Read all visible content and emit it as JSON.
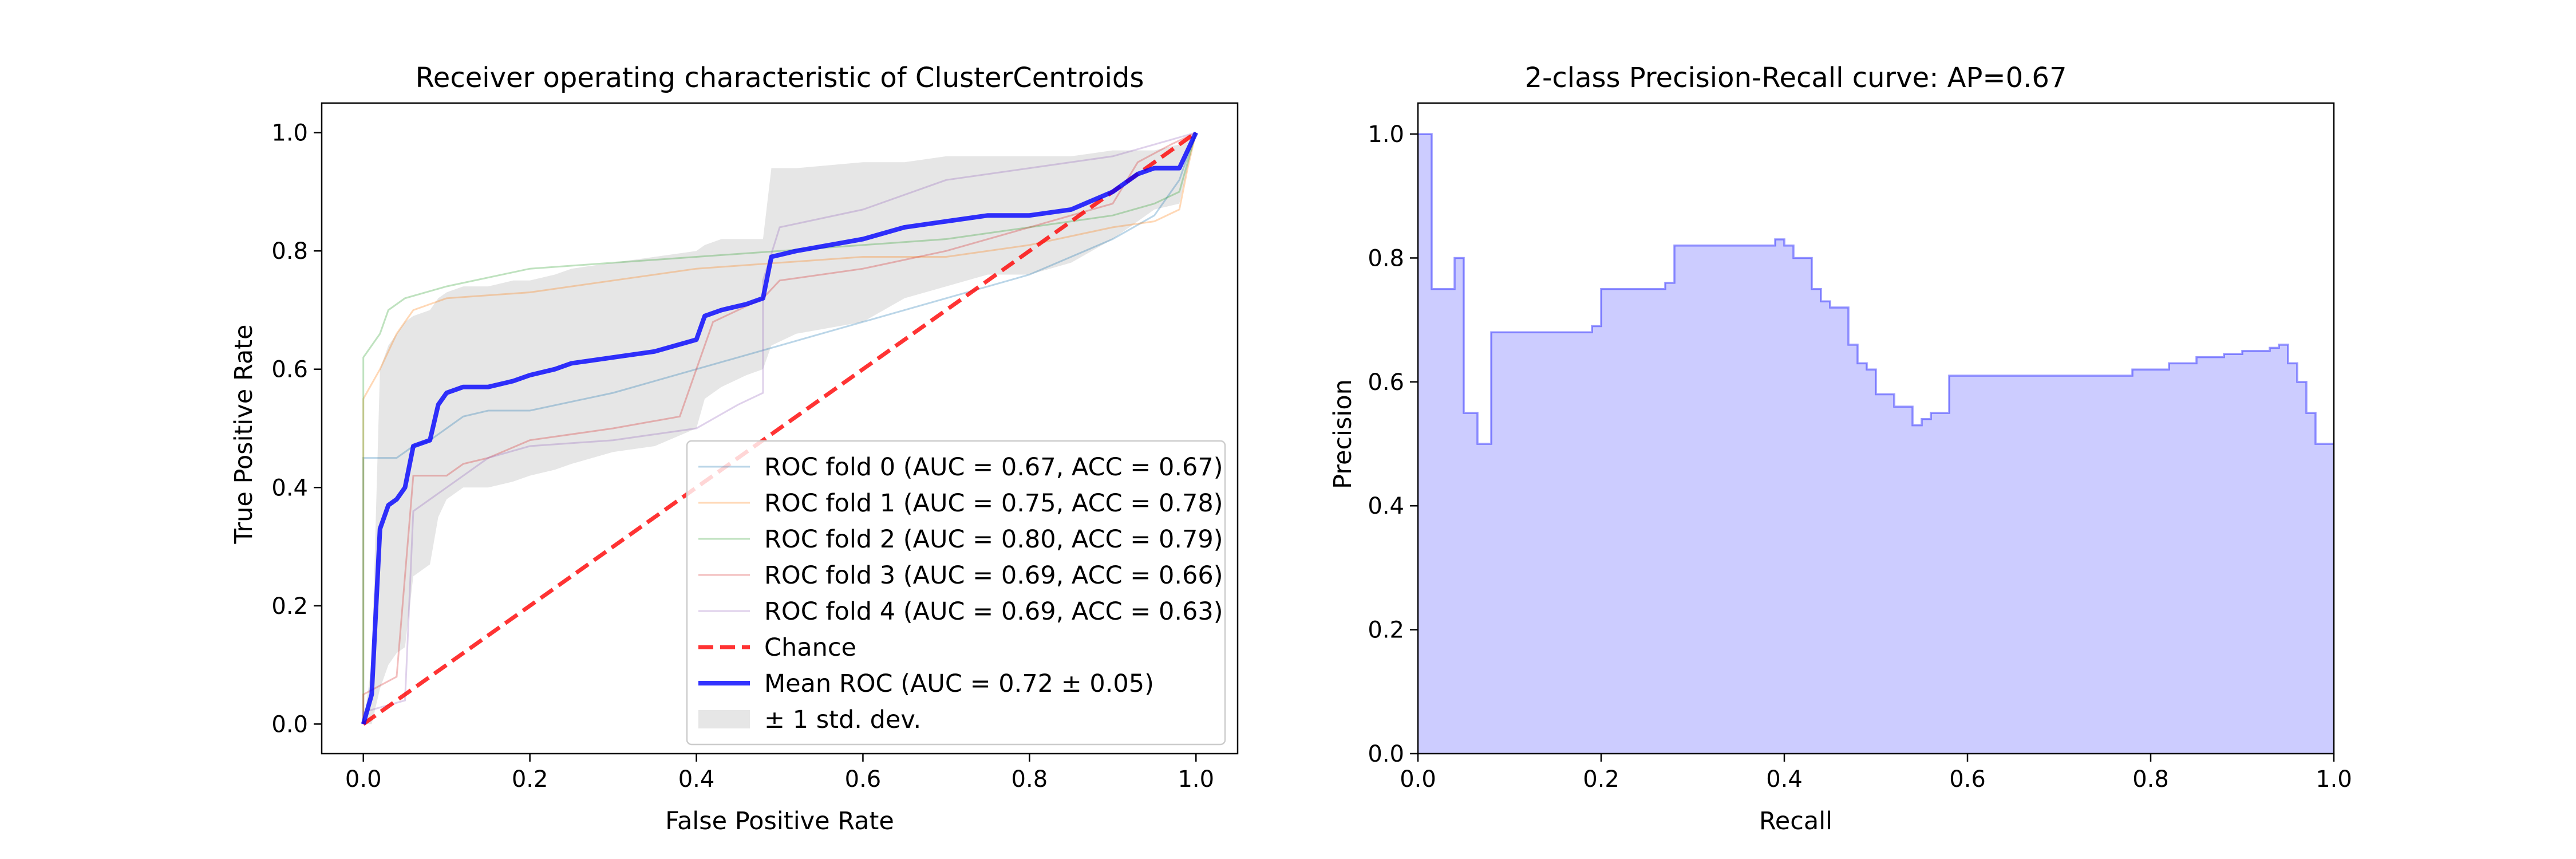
{
  "chart_data": [
    {
      "type": "line",
      "title": "Receiver operating characteristic of ClusterCentroids",
      "xlabel": "False Positive Rate",
      "ylabel": "True Positive Rate",
      "xlim": [
        -0.05,
        1.05
      ],
      "ylim": [
        -0.05,
        1.05
      ],
      "xticks": [
        "0.0",
        "0.2",
        "0.4",
        "0.6",
        "0.8",
        "1.0"
      ],
      "yticks": [
        "0.0",
        "0.2",
        "0.4",
        "0.6",
        "0.8",
        "1.0"
      ],
      "grid": false,
      "legend_position": "lower right",
      "series": [
        {
          "name": "ROC fold 0 (AUC = 0.67, ACC = 0.67)",
          "color": "#1f77b4",
          "points": [
            [
              0.0,
              0.0
            ],
            [
              0.0,
              0.45
            ],
            [
              0.02,
              0.45
            ],
            [
              0.04,
              0.45
            ],
            [
              0.06,
              0.47
            ],
            [
              0.08,
              0.48
            ],
            [
              0.1,
              0.5
            ],
            [
              0.12,
              0.52
            ],
            [
              0.15,
              0.53
            ],
            [
              0.2,
              0.53
            ],
            [
              0.3,
              0.56
            ],
            [
              0.4,
              0.6
            ],
            [
              0.5,
              0.64
            ],
            [
              0.6,
              0.68
            ],
            [
              0.7,
              0.72
            ],
            [
              0.8,
              0.76
            ],
            [
              0.9,
              0.82
            ],
            [
              0.95,
              0.86
            ],
            [
              0.98,
              0.92
            ],
            [
              1.0,
              1.0
            ]
          ]
        },
        {
          "name": "ROC fold 1 (AUC = 0.75, ACC = 0.78)",
          "color": "#ff7f0e",
          "points": [
            [
              0.0,
              0.0
            ],
            [
              0.0,
              0.55
            ],
            [
              0.02,
              0.6
            ],
            [
              0.04,
              0.66
            ],
            [
              0.06,
              0.7
            ],
            [
              0.1,
              0.72
            ],
            [
              0.2,
              0.73
            ],
            [
              0.3,
              0.75
            ],
            [
              0.4,
              0.77
            ],
            [
              0.5,
              0.78
            ],
            [
              0.6,
              0.79
            ],
            [
              0.7,
              0.79
            ],
            [
              0.8,
              0.81
            ],
            [
              0.9,
              0.84
            ],
            [
              0.95,
              0.85
            ],
            [
              0.98,
              0.87
            ],
            [
              0.99,
              0.94
            ],
            [
              1.0,
              1.0
            ]
          ]
        },
        {
          "name": "ROC fold 2 (AUC = 0.80, ACC = 0.79)",
          "color": "#2ca02c",
          "points": [
            [
              0.0,
              0.0
            ],
            [
              0.0,
              0.62
            ],
            [
              0.02,
              0.66
            ],
            [
              0.03,
              0.7
            ],
            [
              0.05,
              0.72
            ],
            [
              0.1,
              0.74
            ],
            [
              0.2,
              0.77
            ],
            [
              0.3,
              0.78
            ],
            [
              0.4,
              0.79
            ],
            [
              0.5,
              0.8
            ],
            [
              0.6,
              0.81
            ],
            [
              0.7,
              0.82
            ],
            [
              0.8,
              0.84
            ],
            [
              0.9,
              0.86
            ],
            [
              0.95,
              0.88
            ],
            [
              0.98,
              0.9
            ],
            [
              1.0,
              1.0
            ]
          ]
        },
        {
          "name": "ROC fold 3 (AUC = 0.69, ACC = 0.66)",
          "color": "#d62728",
          "points": [
            [
              0.0,
              0.0
            ],
            [
              0.0,
              0.05
            ],
            [
              0.04,
              0.08
            ],
            [
              0.06,
              0.42
            ],
            [
              0.1,
              0.42
            ],
            [
              0.12,
              0.44
            ],
            [
              0.15,
              0.45
            ],
            [
              0.2,
              0.48
            ],
            [
              0.3,
              0.5
            ],
            [
              0.38,
              0.52
            ],
            [
              0.4,
              0.6
            ],
            [
              0.42,
              0.68
            ],
            [
              0.45,
              0.7
            ],
            [
              0.48,
              0.72
            ],
            [
              0.5,
              0.75
            ],
            [
              0.6,
              0.77
            ],
            [
              0.7,
              0.8
            ],
            [
              0.8,
              0.84
            ],
            [
              0.9,
              0.88
            ],
            [
              0.93,
              0.95
            ],
            [
              0.97,
              0.98
            ],
            [
              1.0,
              1.0
            ]
          ]
        },
        {
          "name": "ROC fold 4 (AUC = 0.69, ACC = 0.63)",
          "color": "#9467bd",
          "points": [
            [
              0.0,
              0.0
            ],
            [
              0.0,
              0.02
            ],
            [
              0.05,
              0.04
            ],
            [
              0.06,
              0.36
            ],
            [
              0.1,
              0.4
            ],
            [
              0.15,
              0.45
            ],
            [
              0.2,
              0.47
            ],
            [
              0.3,
              0.48
            ],
            [
              0.4,
              0.5
            ],
            [
              0.45,
              0.54
            ],
            [
              0.48,
              0.56
            ],
            [
              0.48,
              0.75
            ],
            [
              0.5,
              0.84
            ],
            [
              0.6,
              0.87
            ],
            [
              0.7,
              0.92
            ],
            [
              0.8,
              0.94
            ],
            [
              0.9,
              0.96
            ],
            [
              0.95,
              0.98
            ],
            [
              1.0,
              1.0
            ]
          ]
        },
        {
          "name": "Chance",
          "color": "#ff0000",
          "dashed": true,
          "points": [
            [
              0.0,
              0.0
            ],
            [
              1.0,
              1.0
            ]
          ]
        },
        {
          "name": "Mean ROC (AUC = 0.72 ± 0.05)",
          "color": "#0000ff",
          "points": [
            [
              0.0,
              0.0
            ],
            [
              0.01,
              0.05
            ],
            [
              0.02,
              0.33
            ],
            [
              0.03,
              0.37
            ],
            [
              0.04,
              0.38
            ],
            [
              0.05,
              0.4
            ],
            [
              0.06,
              0.47
            ],
            [
              0.08,
              0.48
            ],
            [
              0.09,
              0.54
            ],
            [
              0.1,
              0.56
            ],
            [
              0.12,
              0.57
            ],
            [
              0.15,
              0.57
            ],
            [
              0.18,
              0.58
            ],
            [
              0.2,
              0.59
            ],
            [
              0.23,
              0.6
            ],
            [
              0.25,
              0.61
            ],
            [
              0.3,
              0.62
            ],
            [
              0.35,
              0.63
            ],
            [
              0.4,
              0.65
            ],
            [
              0.41,
              0.69
            ],
            [
              0.43,
              0.7
            ],
            [
              0.46,
              0.71
            ],
            [
              0.48,
              0.72
            ],
            [
              0.49,
              0.79
            ],
            [
              0.52,
              0.8
            ],
            [
              0.6,
              0.82
            ],
            [
              0.65,
              0.84
            ],
            [
              0.7,
              0.85
            ],
            [
              0.75,
              0.86
            ],
            [
              0.8,
              0.86
            ],
            [
              0.85,
              0.87
            ],
            [
              0.9,
              0.9
            ],
            [
              0.93,
              0.93
            ],
            [
              0.95,
              0.94
            ],
            [
              0.98,
              0.94
            ],
            [
              1.0,
              1.0
            ]
          ]
        }
      ],
      "std_band": {
        "name": "± 1 std. dev.",
        "color": "#808080",
        "x": [
          0.0,
          0.01,
          0.02,
          0.03,
          0.04,
          0.05,
          0.06,
          0.08,
          0.09,
          0.1,
          0.12,
          0.15,
          0.18,
          0.2,
          0.23,
          0.25,
          0.3,
          0.35,
          0.4,
          0.41,
          0.43,
          0.46,
          0.48,
          0.49,
          0.52,
          0.6,
          0.65,
          0.7,
          0.75,
          0.8,
          0.85,
          0.9,
          0.93,
          0.95,
          0.98,
          1.0
        ],
        "upper": [
          0.0,
          0.1,
          0.6,
          0.64,
          0.66,
          0.68,
          0.69,
          0.7,
          0.72,
          0.73,
          0.74,
          0.74,
          0.75,
          0.75,
          0.76,
          0.77,
          0.78,
          0.79,
          0.8,
          0.81,
          0.82,
          0.82,
          0.82,
          0.94,
          0.94,
          0.95,
          0.95,
          0.96,
          0.96,
          0.96,
          0.96,
          0.97,
          0.97,
          0.97,
          0.98,
          1.0
        ],
        "lower": [
          0.0,
          0.0,
          0.06,
          0.1,
          0.12,
          0.13,
          0.25,
          0.27,
          0.35,
          0.38,
          0.4,
          0.4,
          0.41,
          0.42,
          0.43,
          0.44,
          0.46,
          0.47,
          0.5,
          0.55,
          0.57,
          0.59,
          0.6,
          0.64,
          0.66,
          0.68,
          0.72,
          0.74,
          0.76,
          0.76,
          0.78,
          0.82,
          0.85,
          0.87,
          0.88,
          1.0
        ]
      }
    },
    {
      "type": "area",
      "title": "2-class Precision-Recall curve: AP=0.67",
      "xlabel": "Recall",
      "ylabel": "Precision",
      "xlim": [
        0.0,
        1.0
      ],
      "ylim": [
        0.0,
        1.05
      ],
      "xticks": [
        "0.0",
        "0.2",
        "0.4",
        "0.6",
        "0.8",
        "1.0"
      ],
      "yticks": [
        "0.0",
        "0.2",
        "0.4",
        "0.6",
        "0.8",
        "1.0"
      ],
      "grid": false,
      "step": "post",
      "color": "#0000ff",
      "recall": [
        0.0,
        0.015,
        0.015,
        0.04,
        0.04,
        0.05,
        0.05,
        0.065,
        0.065,
        0.08,
        0.08,
        0.19,
        0.2,
        0.26,
        0.27,
        0.28,
        0.38,
        0.39,
        0.4,
        0.41,
        0.43,
        0.44,
        0.45,
        0.46,
        0.47,
        0.48,
        0.49,
        0.5,
        0.52,
        0.54,
        0.55,
        0.56,
        0.58,
        0.75,
        0.78,
        0.8,
        0.82,
        0.85,
        0.88,
        0.9,
        0.93,
        0.94,
        0.95,
        0.96,
        0.97,
        0.98,
        1.0
      ],
      "precision": [
        1.0,
        0.75,
        0.75,
        0.8,
        0.8,
        0.55,
        0.55,
        0.5,
        0.5,
        0.68,
        0.68,
        0.69,
        0.75,
        0.75,
        0.76,
        0.82,
        0.82,
        0.83,
        0.82,
        0.8,
        0.75,
        0.73,
        0.72,
        0.72,
        0.66,
        0.63,
        0.62,
        0.58,
        0.56,
        0.53,
        0.54,
        0.55,
        0.61,
        0.61,
        0.62,
        0.62,
        0.63,
        0.64,
        0.645,
        0.65,
        0.655,
        0.66,
        0.63,
        0.6,
        0.55,
        0.5,
        0.5
      ]
    }
  ]
}
